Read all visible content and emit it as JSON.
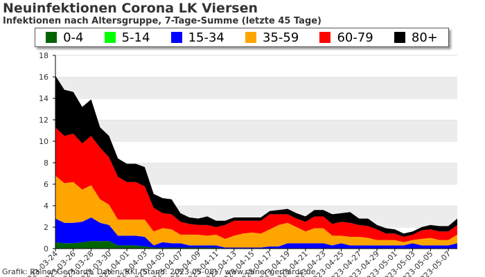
{
  "header": {
    "title": "Neuinfektionen Corona LK Viersen",
    "subtitle": "Infektionen nach Altersgruppe, 7-Tage-Summe (letzte 45 Tage)"
  },
  "footer": {
    "text": "Grafik: Rainer Gerhards, Daten: RKI (Stand: 2023-05-08) / www.rainer-gerhards.de"
  },
  "chart_data": {
    "type": "area",
    "stacked": true,
    "title": "Neuinfektionen Corona LK Viersen",
    "subtitle": "Infektionen nach Altersgruppe, 7-Tage-Summe (letzte 45 Tage)",
    "xlabel": "",
    "ylabel": "",
    "ylim": [
      0,
      18
    ],
    "yticks": [
      0,
      2,
      4,
      6,
      8,
      10,
      12,
      14,
      16,
      18
    ],
    "grid": "horizontal bands",
    "legend_position": "top",
    "x": [
      "2023-03-24",
      "2023-03-25",
      "2023-03-26",
      "2023-03-27",
      "2023-03-28",
      "2023-03-29",
      "2023-03-30",
      "2023-03-31",
      "2023-04-01",
      "2023-04-02",
      "2023-04-03",
      "2023-04-04",
      "2023-04-05",
      "2023-04-06",
      "2023-04-07",
      "2023-04-08",
      "2023-04-09",
      "2023-04-10",
      "2023-04-11",
      "2023-04-12",
      "2023-04-13",
      "2023-04-14",
      "2023-04-15",
      "2023-04-16",
      "2023-04-17",
      "2023-04-18",
      "2023-04-19",
      "2023-04-20",
      "2023-04-21",
      "2023-04-22",
      "2023-04-23",
      "2023-04-24",
      "2023-04-25",
      "2023-04-26",
      "2023-04-27",
      "2023-04-28",
      "2023-04-29",
      "2023-04-30",
      "2023-05-01",
      "2023-05-02",
      "2023-05-03",
      "2023-05-04",
      "2023-05-05",
      "2023-05-06",
      "2023-05-07",
      "2023-05-08"
    ],
    "x_tick_labels": [
      "2023-03-24",
      "2023-03-26",
      "2023-03-28",
      "2023-03-30",
      "2023-04-01",
      "2023-04-03",
      "2023-04-05",
      "2023-04-07",
      "2023-04-09",
      "2023-04-11",
      "2023-04-13",
      "2023-04-15",
      "2023-04-17",
      "2023-04-19",
      "2023-04-21",
      "2023-04-23",
      "2023-04-25",
      "2023-04-27",
      "2023-04-29",
      "2023-05-01",
      "2023-05-03",
      "2023-05-05",
      "2023-05-07"
    ],
    "series": [
      {
        "name": "0-4",
        "color": "#006400",
        "values": [
          0.6,
          0.5,
          0.5,
          0.6,
          0.7,
          0.7,
          0.7,
          0.3,
          0.3,
          0.3,
          0.2,
          0.1,
          0.1,
          0.1,
          0.1,
          0.1,
          0.1,
          0.1,
          0.1,
          0,
          0,
          0,
          0,
          0,
          0,
          0,
          0,
          0,
          0,
          0,
          0,
          0,
          0,
          0,
          0,
          0,
          0,
          0,
          0,
          0,
          0,
          0,
          0,
          0,
          0,
          0
        ]
      },
      {
        "name": "5-14",
        "color": "#00ff00",
        "values": [
          0,
          0,
          0,
          0,
          0,
          0,
          0,
          0,
          0,
          0,
          0,
          0,
          0,
          0,
          0,
          0,
          0,
          0,
          0,
          0,
          0,
          0,
          0,
          0,
          0,
          0,
          0,
          0,
          0,
          0,
          0,
          0,
          0,
          0,
          0,
          0,
          0,
          0,
          0,
          0,
          0,
          0,
          0,
          0,
          0,
          0
        ]
      },
      {
        "name": "15-34",
        "color": "#0000ff",
        "values": [
          2.2,
          1.9,
          1.9,
          1.9,
          2.2,
          1.7,
          1.5,
          0.9,
          0.9,
          0.9,
          0.9,
          0.2,
          0.5,
          0.4,
          0.4,
          0.2,
          0.2,
          0.2,
          0.2,
          0.1,
          0.1,
          0.1,
          0.1,
          0.1,
          0.2,
          0.2,
          0.5,
          0.5,
          0.5,
          0.5,
          0.5,
          0.3,
          0.5,
          0.3,
          0.3,
          0.3,
          0.3,
          0.3,
          0.3,
          0.3,
          0.5,
          0.3,
          0.3,
          0.3,
          0.3,
          0.5
        ]
      },
      {
        "name": "35-59",
        "color": "#ffa500",
        "values": [
          4.0,
          3.7,
          3.8,
          3.0,
          3.0,
          2.2,
          1.9,
          1.5,
          1.5,
          1.5,
          1.6,
          1.3,
          1.3,
          1.3,
          0.8,
          1.0,
          1.0,
          0.9,
          1.0,
          0.8,
          1.1,
          1.3,
          1.4,
          1.3,
          1.6,
          2.0,
          1.9,
          1.5,
          1.1,
          1.4,
          1.4,
          0.9,
          0.7,
          0.8,
          0.8,
          0.7,
          0.5,
          0.5,
          0.5,
          0.3,
          0.3,
          0.6,
          0.7,
          0.5,
          0.5,
          0.8
        ]
      },
      {
        "name": "60-79",
        "color": "#ff0000",
        "values": [
          4.5,
          4.4,
          4.5,
          4.3,
          4.6,
          4.8,
          4.4,
          4.0,
          3.5,
          3.5,
          3.1,
          2.2,
          1.4,
          1.4,
          1.2,
          1.0,
          0.9,
          1.0,
          0.7,
          1.3,
          1.4,
          1.2,
          1.1,
          1.2,
          1.4,
          1.0,
          0.8,
          0.8,
          0.9,
          1.1,
          1.1,
          1.1,
          1.3,
          1.3,
          1.1,
          1.1,
          1.0,
          0.6,
          0.6,
          0.5,
          0.5,
          0.8,
          0.8,
          0.8,
          0.8,
          0.9
        ]
      },
      {
        "name": "80+",
        "color": "#000000",
        "values": [
          4.8,
          4.3,
          3.9,
          3.4,
          3.4,
          1.9,
          2.0,
          1.7,
          1.7,
          1.7,
          1.8,
          1.3,
          1.4,
          1.4,
          0.8,
          0.6,
          0.6,
          0.8,
          0.6,
          0.4,
          0.3,
          0.3,
          0.3,
          0.3,
          0.3,
          0.4,
          0.5,
          0.5,
          0.5,
          0.6,
          0.6,
          0.9,
          0.8,
          1.0,
          0.6,
          0.7,
          0.4,
          0.5,
          0.4,
          0.3,
          0.3,
          0.3,
          0.4,
          0.5,
          0.5,
          0.6
        ]
      }
    ]
  }
}
